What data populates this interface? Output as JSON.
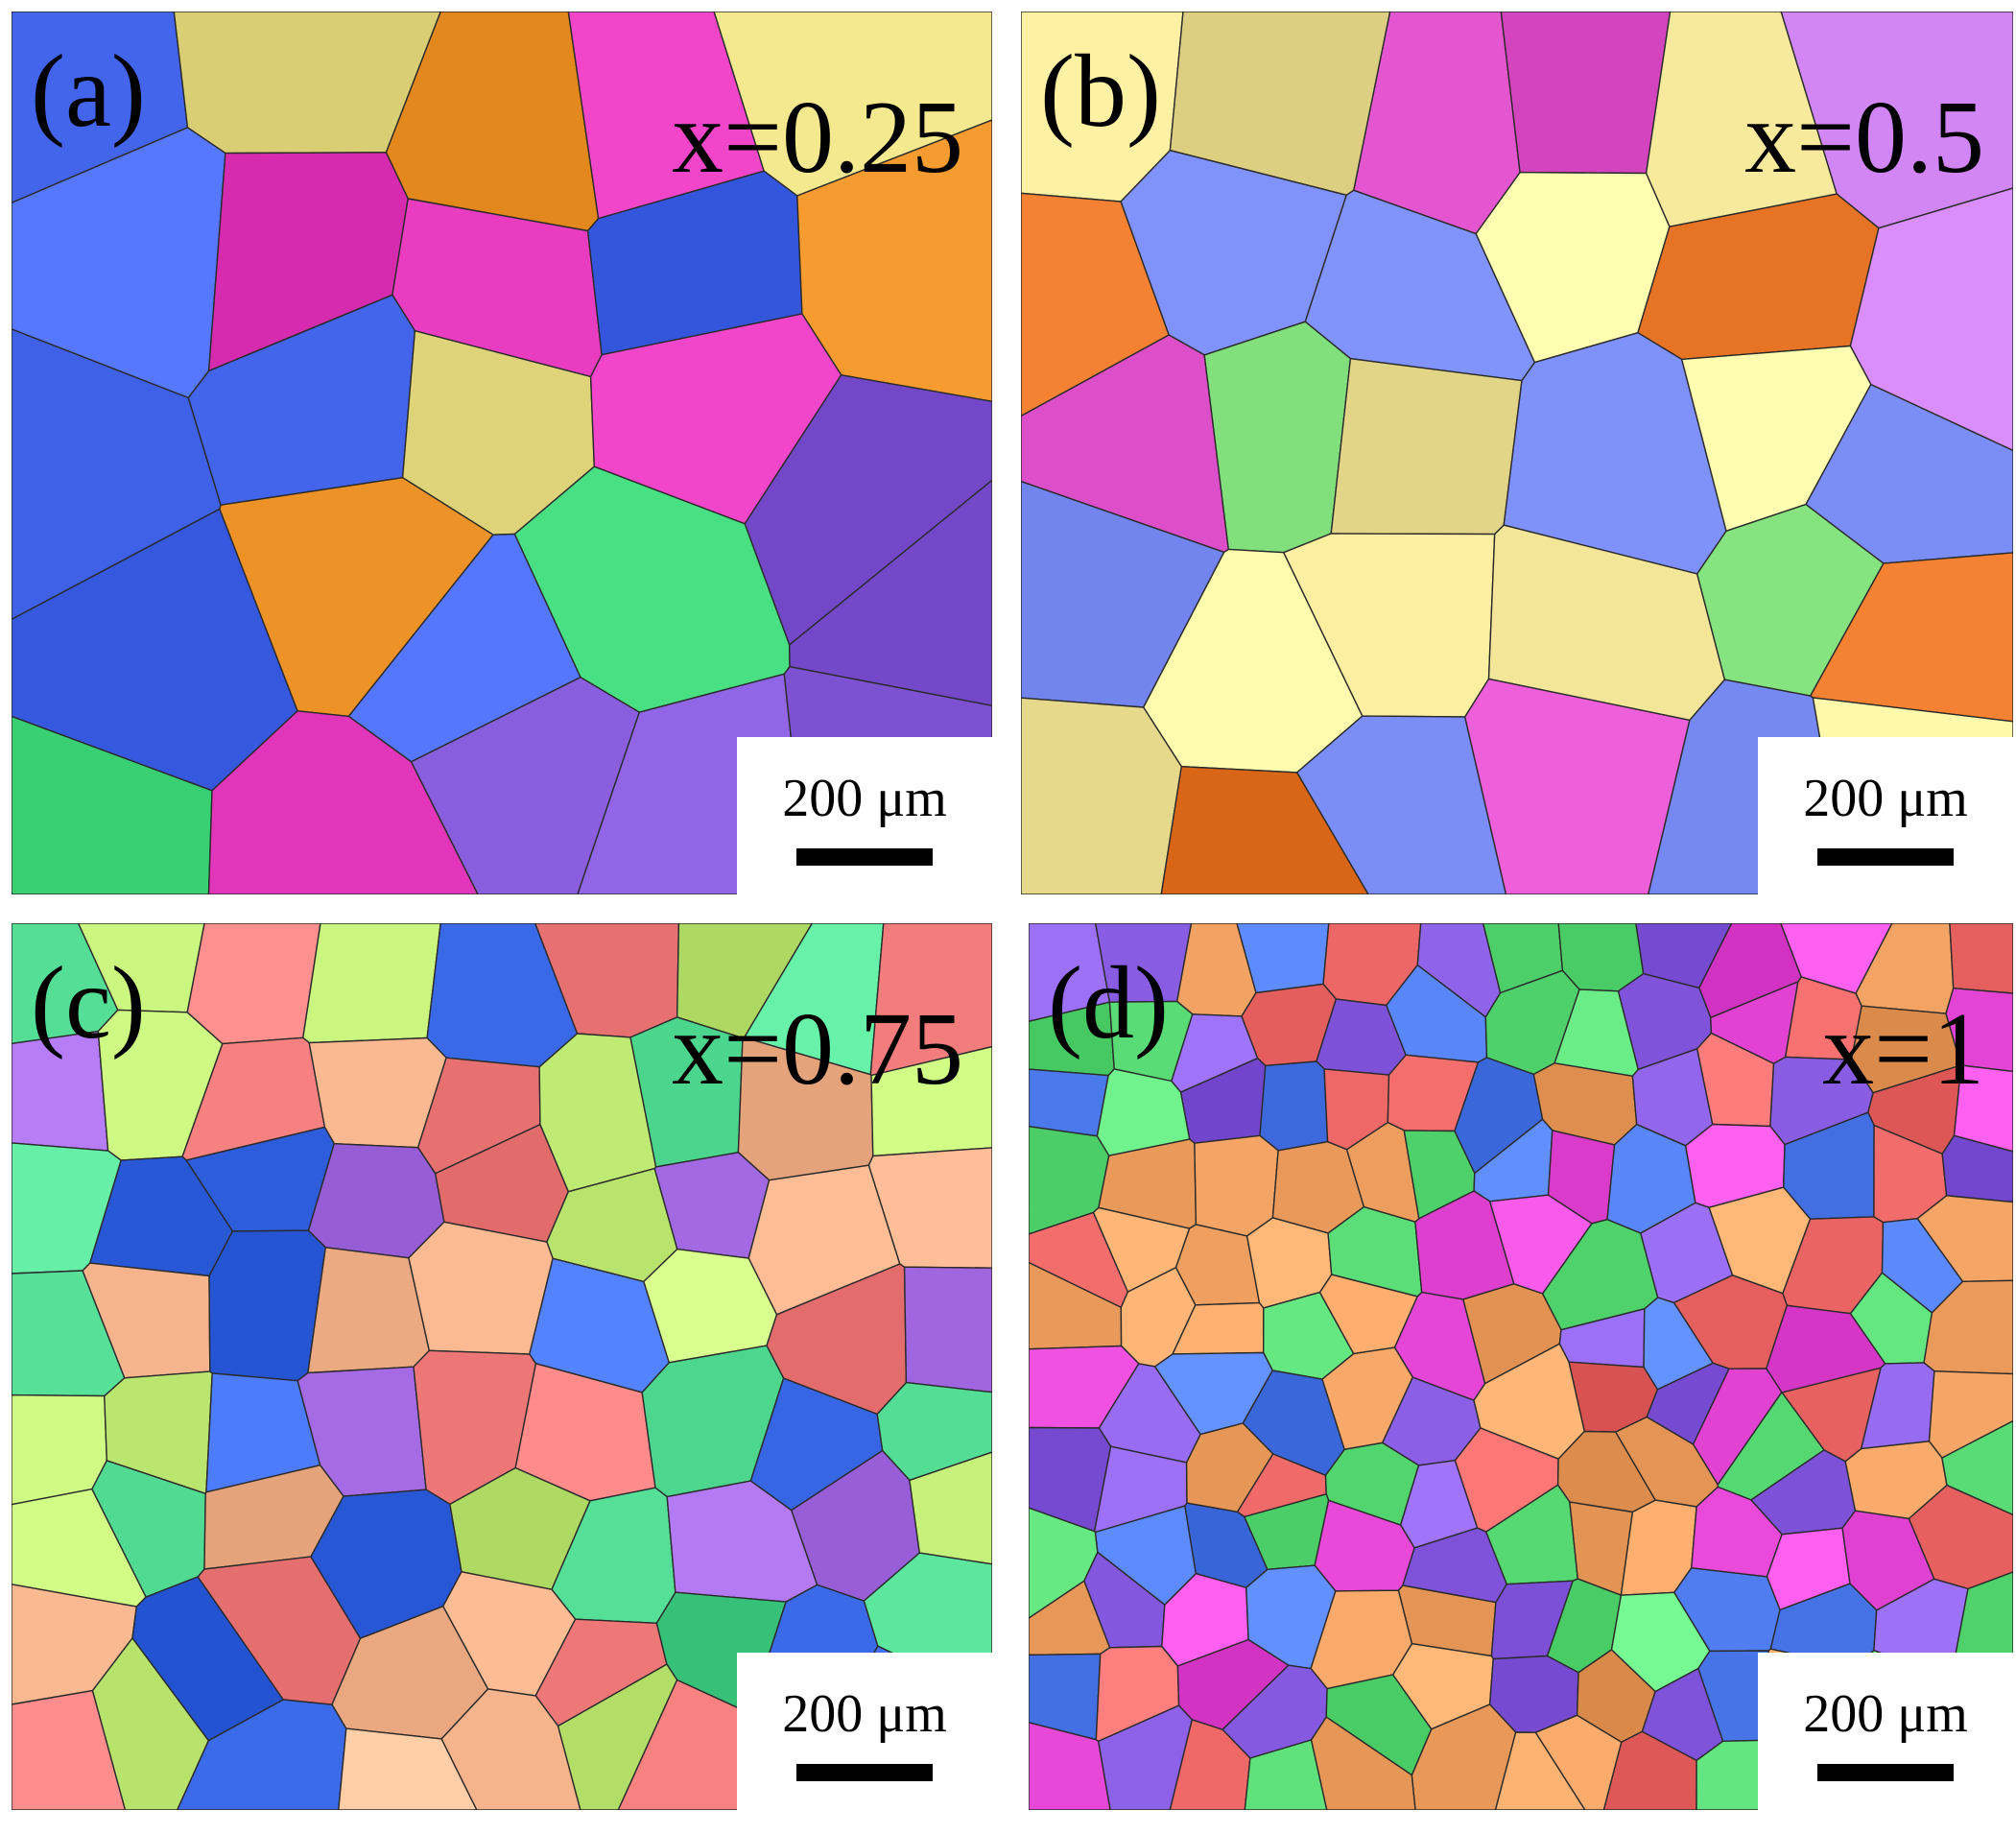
{
  "panels": [
    {
      "id": "a",
      "label": "(a)",
      "composition": "x=0.25",
      "scale_bar": "200 μm",
      "dominant_colors": [
        "#e83cc0",
        "#3d5fe6",
        "#f0e58a",
        "#3fd67a",
        "#f59a2e",
        "#8b60e0"
      ]
    },
    {
      "id": "b",
      "label": "(b)",
      "composition": "x=0.5",
      "scale_bar": "200 μm",
      "dominant_colors": [
        "#f4e79a",
        "#c77bea",
        "#f07d2d",
        "#6a7ce6",
        "#7fdd7a",
        "#e859d4"
      ]
    },
    {
      "id": "c",
      "label": "(c)",
      "composition": "x=0.75",
      "scale_bar": "200 μm",
      "dominant_colors": [
        "#f07a7a",
        "#4fd890",
        "#a86ee8",
        "#3b6be8",
        "#f7b58e",
        "#c4f07a"
      ]
    },
    {
      "id": "d",
      "label": "(d)",
      "composition": "x=1",
      "scale_bar": "200 μm",
      "dominant_colors": [
        "#e94ad9",
        "#4f7df0",
        "#f0a060",
        "#5ee07a",
        "#8b5ee6",
        "#f06a6a"
      ]
    }
  ]
}
